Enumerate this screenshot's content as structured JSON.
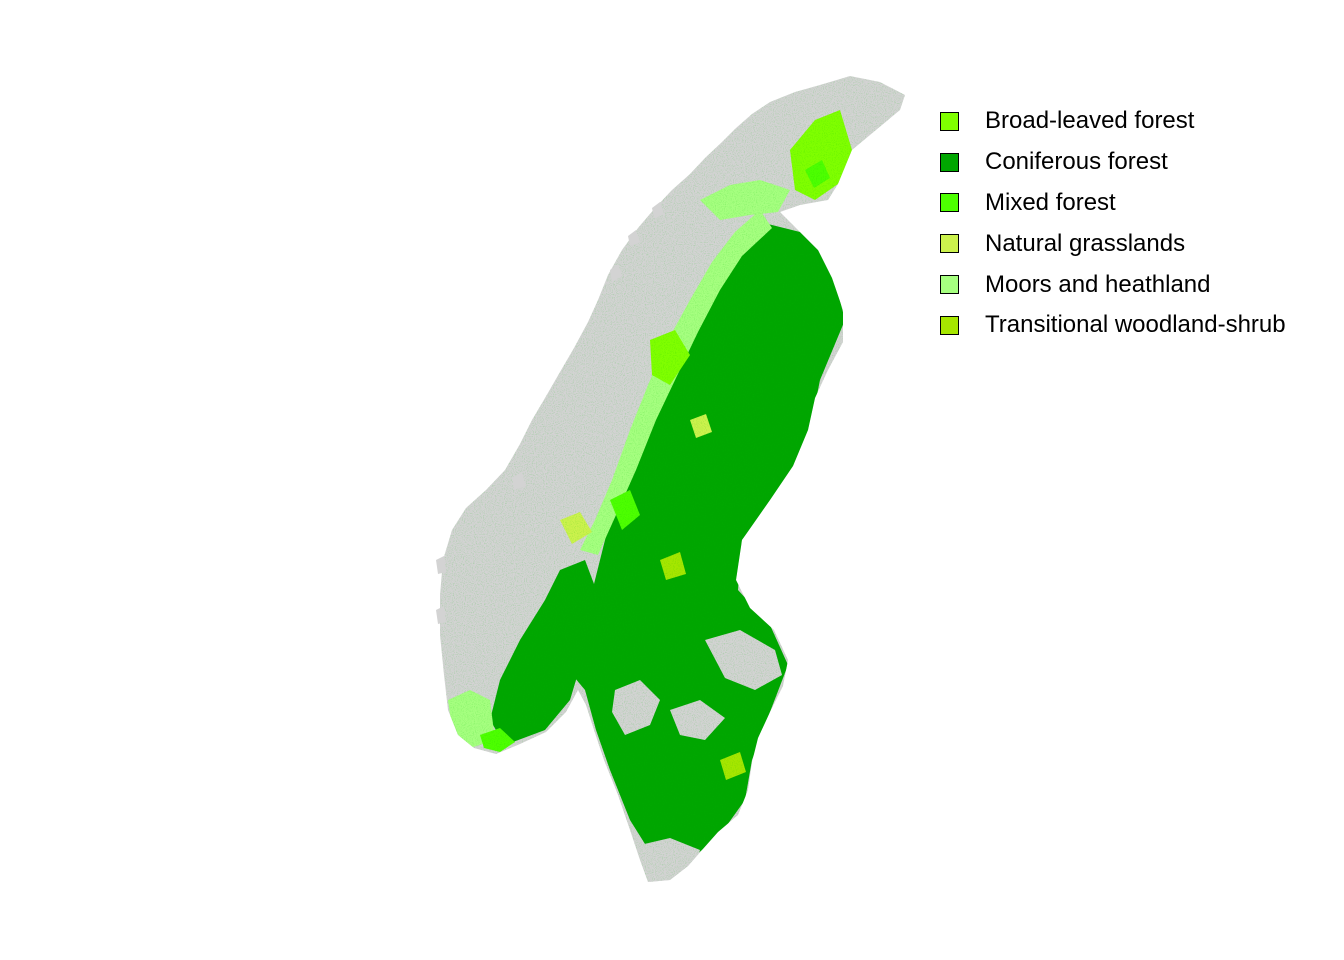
{
  "map": {
    "background_color": "#d3d3d3",
    "classes": [
      {
        "label": "Broad-leaved forest",
        "color": "#80ff00"
      },
      {
        "label": "Coniferous forest",
        "color": "#00a600"
      },
      {
        "label": "Mixed forest",
        "color": "#4dff00"
      },
      {
        "label": "Natural grasslands",
        "color": "#ccf24d"
      },
      {
        "label": "Moors and heathland",
        "color": "#a6ff80"
      },
      {
        "label": "Transitional woodland-shrub",
        "color": "#a6e600"
      }
    ]
  }
}
